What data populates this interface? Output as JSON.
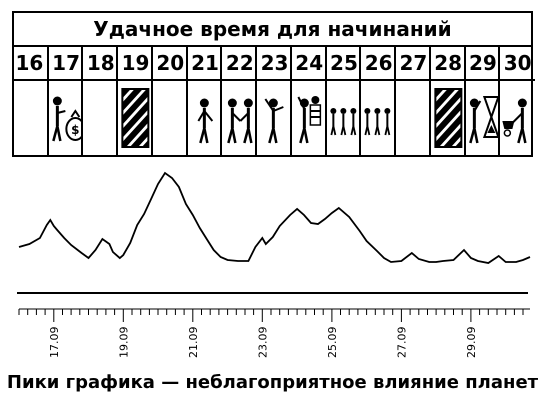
{
  "table": {
    "title": "Удачное время для начинаний",
    "days": [
      {
        "num": "16",
        "pic": "empty"
      },
      {
        "num": "17",
        "pic": "man-with-money-bag-icon"
      },
      {
        "num": "18",
        "pic": "empty"
      },
      {
        "num": "19",
        "pic": "hatched-box-icon"
      },
      {
        "num": "20",
        "pic": "empty"
      },
      {
        "num": "21",
        "pic": "walking-man-icon"
      },
      {
        "num": "22",
        "pic": "handshake-icon"
      },
      {
        "num": "23",
        "pic": "man-waving-icon"
      },
      {
        "num": "24",
        "pic": "man-with-striped-shirt-icon"
      },
      {
        "num": "25",
        "pic": "group-of-people-icon"
      },
      {
        "num": "26",
        "pic": "group-of-people-icon"
      },
      {
        "num": "27",
        "pic": "empty"
      },
      {
        "num": "28",
        "pic": "hatched-box-icon"
      },
      {
        "num": "29",
        "pic": "man-with-hourglass-icon"
      },
      {
        "num": "30",
        "pic": "man-pushing-wheelbarrow-icon"
      }
    ]
  },
  "chart_data": {
    "type": "line",
    "title": "",
    "xlabel": "",
    "ylabel": "",
    "x_range": [
      16.0,
      30.7
    ],
    "ylim": [
      0,
      100
    ],
    "grid": false,
    "tick_labels": [
      "17.09",
      "19.09",
      "21.09",
      "23.09",
      "25.09",
      "27.09",
      "29.09"
    ],
    "tick_positions": [
      17,
      19,
      21,
      23,
      25,
      27,
      29
    ],
    "series": [
      {
        "x": [
          16.0,
          16.3,
          16.6,
          16.8,
          16.9,
          17.0,
          17.1,
          17.3,
          17.5,
          17.8,
          18.0,
          18.2,
          18.4,
          18.6,
          18.7,
          18.9,
          19.0,
          19.2,
          19.4,
          19.6,
          19.8,
          20.0,
          20.2,
          20.4,
          20.6,
          20.8,
          21.0,
          21.2,
          21.4,
          21.6,
          21.8,
          22.0,
          22.3,
          22.6,
          22.8,
          23.0,
          23.1,
          23.3,
          23.5,
          23.8,
          24.0,
          24.2,
          24.4,
          24.6,
          24.8,
          25.0,
          25.2,
          25.5,
          25.8,
          26.0,
          26.3,
          26.5,
          26.7,
          27.0,
          27.3,
          27.5,
          27.8,
          28.0,
          28.2,
          28.5,
          28.8,
          29.0,
          29.2,
          29.5,
          29.8,
          30.0,
          30.3,
          30.5,
          30.7
        ],
        "values": [
          25,
          28,
          34,
          47,
          52,
          46,
          42,
          34,
          27,
          19,
          14,
          22,
          33,
          28,
          20,
          14,
          17,
          29,
          47,
          58,
          73,
          88,
          99,
          94,
          85,
          68,
          57,
          44,
          33,
          22,
          15,
          12,
          11,
          11,
          25,
          34,
          28,
          35,
          46,
          57,
          63,
          57,
          49,
          48,
          53,
          59,
          64,
          55,
          41,
          31,
          21,
          14,
          10,
          11,
          19,
          13,
          10,
          10,
          11,
          12,
          22,
          14,
          11,
          9,
          16,
          10,
          10,
          12,
          15
        ]
      }
    ]
  },
  "caption": "Пики графика — неблагоприятное влияние планет"
}
